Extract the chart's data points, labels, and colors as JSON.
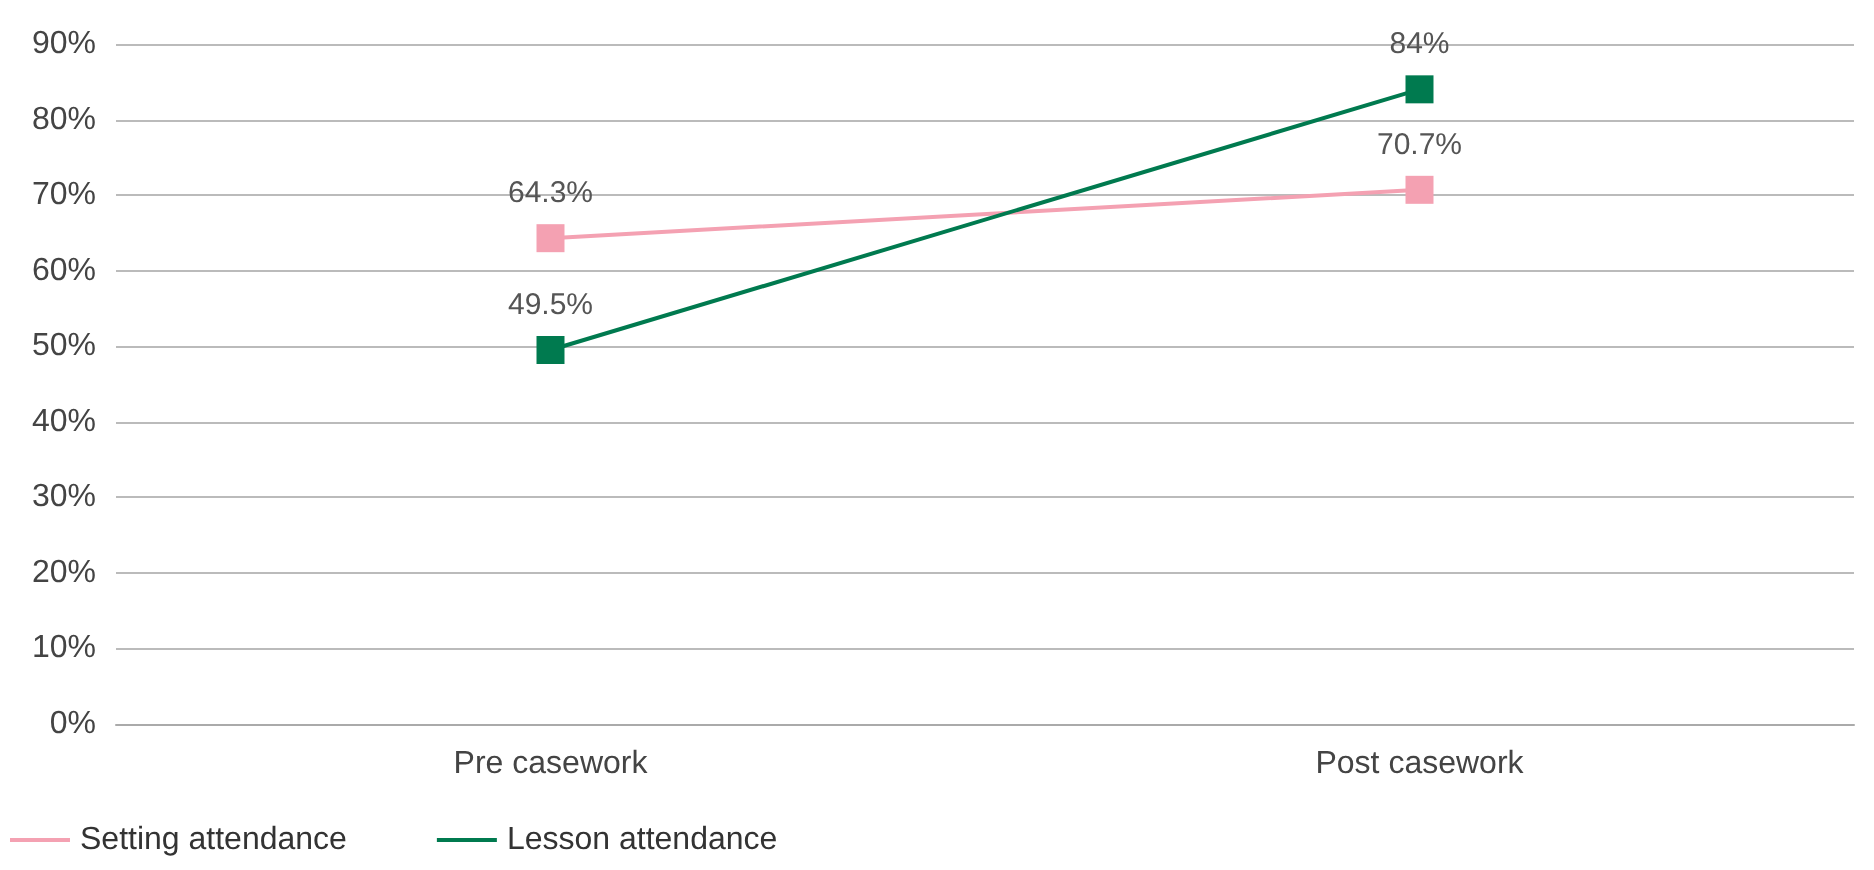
{
  "chart_data": {
    "type": "line",
    "categories": [
      "Pre casework",
      "Post casework"
    ],
    "series": [
      {
        "name": "Setting attendance",
        "color": "#f4a1b2",
        "values": [
          64.3,
          70.7
        ],
        "value_labels": [
          "64.3%",
          "70.7%"
        ]
      },
      {
        "name": "Lesson attendance",
        "color": "#007a4f",
        "values": [
          49.5,
          84
        ],
        "value_labels": [
          "49.5%",
          "84%"
        ]
      }
    ],
    "ylim": [
      0,
      90
    ],
    "yticks": [
      {
        "value": 0,
        "label": "0%"
      },
      {
        "value": 10,
        "label": "10%"
      },
      {
        "value": 20,
        "label": "20%"
      },
      {
        "value": 30,
        "label": "30%"
      },
      {
        "value": 40,
        "label": "40%"
      },
      {
        "value": 50,
        "label": "50%"
      },
      {
        "value": 60,
        "label": "60%"
      },
      {
        "value": 70,
        "label": "70%"
      },
      {
        "value": 80,
        "label": "80%"
      },
      {
        "value": 90,
        "label": "90%"
      }
    ],
    "grid": "y",
    "legend": "bottom left",
    "marker": "square",
    "line_style": "solid"
  }
}
